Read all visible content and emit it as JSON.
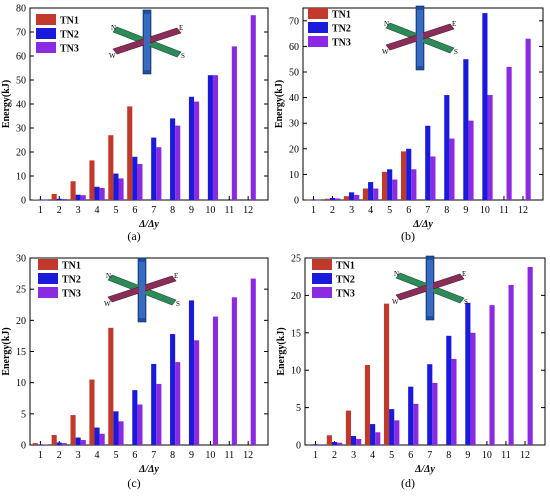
{
  "figure": {
    "panel_labels": [
      "(a)",
      "(b)",
      "(c)",
      "(d)"
    ]
  },
  "legend_labels": [
    "TN1",
    "TN2",
    "TN3"
  ],
  "compass_labels": [
    "N",
    "E",
    "W",
    "S"
  ],
  "colors": {
    "TN1": "#c0392b",
    "TN2": "#1a1adb",
    "TN3": "#8a2be2"
  },
  "chart_data": [
    {
      "type": "bar",
      "panel": "(a)",
      "categories": [
        "1",
        "2",
        "3",
        "4",
        "5",
        "6",
        "7",
        "8",
        "9",
        "10",
        "11",
        "12"
      ],
      "xlabel": "Δ/Δy",
      "ylabel": "Energy(kJ)",
      "ylim": [
        0,
        80
      ],
      "yticks": [
        0,
        10,
        20,
        30,
        40,
        50,
        60,
        70,
        80
      ],
      "series": [
        {
          "name": "TN1",
          "values": [
            0.2,
            2.5,
            7.8,
            16.5,
            27,
            39,
            null,
            null,
            null,
            null,
            null,
            null
          ]
        },
        {
          "name": "TN2",
          "values": [
            0.1,
            0.5,
            2.2,
            5.5,
            11,
            18,
            26,
            34,
            43,
            52,
            null,
            null
          ]
        },
        {
          "name": "TN3",
          "values": [
            0.1,
            0.4,
            2.0,
            5.0,
            9,
            15,
            22,
            31,
            41,
            52,
            64,
            77
          ]
        }
      ]
    },
    {
      "type": "bar",
      "panel": "(b)",
      "categories": [
        "1",
        "2",
        "3",
        "4",
        "5",
        "6",
        "7",
        "8",
        "9",
        "10",
        "11",
        "12"
      ],
      "xlabel": "Δ/Δy",
      "ylabel": "Energy(kJ)",
      "ylim": [
        0,
        75
      ],
      "yticks": [
        0,
        10,
        20,
        30,
        40,
        50,
        60,
        70
      ],
      "series": [
        {
          "name": "TN1",
          "values": [
            0.1,
            0.5,
            1.5,
            4.5,
            11,
            19,
            null,
            null,
            null,
            null,
            null,
            null
          ]
        },
        {
          "name": "TN2",
          "values": [
            0.1,
            0.8,
            3.0,
            7.0,
            12,
            20,
            29,
            41,
            55,
            73,
            null,
            null
          ]
        },
        {
          "name": "TN3",
          "values": [
            0.1,
            0.6,
            2.0,
            4.5,
            8,
            12,
            17,
            24,
            31,
            41,
            52,
            63
          ]
        }
      ]
    },
    {
      "type": "bar",
      "panel": "(c)",
      "categories": [
        "1",
        "2",
        "3",
        "4",
        "5",
        "6",
        "7",
        "8",
        "9",
        "10",
        "11",
        "12"
      ],
      "xlabel": "Δ/Δy",
      "ylabel": "Energy(kJ)",
      "ylim": [
        0,
        30
      ],
      "yticks": [
        0,
        5,
        10,
        15,
        20,
        25,
        30
      ],
      "series": [
        {
          "name": "TN1",
          "values": [
            0.3,
            1.6,
            4.8,
            10.5,
            18.8,
            null,
            null,
            null,
            null,
            null,
            null,
            null
          ]
        },
        {
          "name": "TN2",
          "values": [
            0.1,
            0.4,
            1.2,
            2.8,
            5.4,
            8.8,
            13,
            17.8,
            23.2,
            null,
            null,
            null
          ]
        },
        {
          "name": "TN3",
          "values": [
            0.1,
            0.3,
            0.8,
            1.8,
            3.8,
            6.5,
            9.8,
            13.3,
            16.8,
            20.6,
            23.7,
            26.7
          ]
        }
      ]
    },
    {
      "type": "bar",
      "panel": "(d)",
      "categories": [
        "1",
        "2",
        "3",
        "4",
        "5",
        "6",
        "7",
        "8",
        "9",
        "10",
        "11",
        "12"
      ],
      "xlabel": "Δ/Δy",
      "ylabel": "Energy(kJ)",
      "ylim": [
        0,
        25
      ],
      "yticks": [
        0,
        5,
        10,
        15,
        20,
        25
      ],
      "series": [
        {
          "name": "TN1",
          "values": [
            0.1,
            1.3,
            4.6,
            10.7,
            18.9,
            null,
            null,
            null,
            null,
            null,
            null,
            null
          ]
        },
        {
          "name": "TN2",
          "values": [
            0.1,
            0.4,
            1.2,
            2.8,
            4.8,
            7.8,
            10.8,
            14.6,
            19,
            null,
            null,
            null
          ]
        },
        {
          "name": "TN3",
          "values": [
            0.1,
            0.3,
            0.8,
            1.7,
            3.3,
            5.5,
            8.3,
            11.5,
            15,
            18.7,
            21.4,
            23.8
          ]
        }
      ]
    }
  ]
}
